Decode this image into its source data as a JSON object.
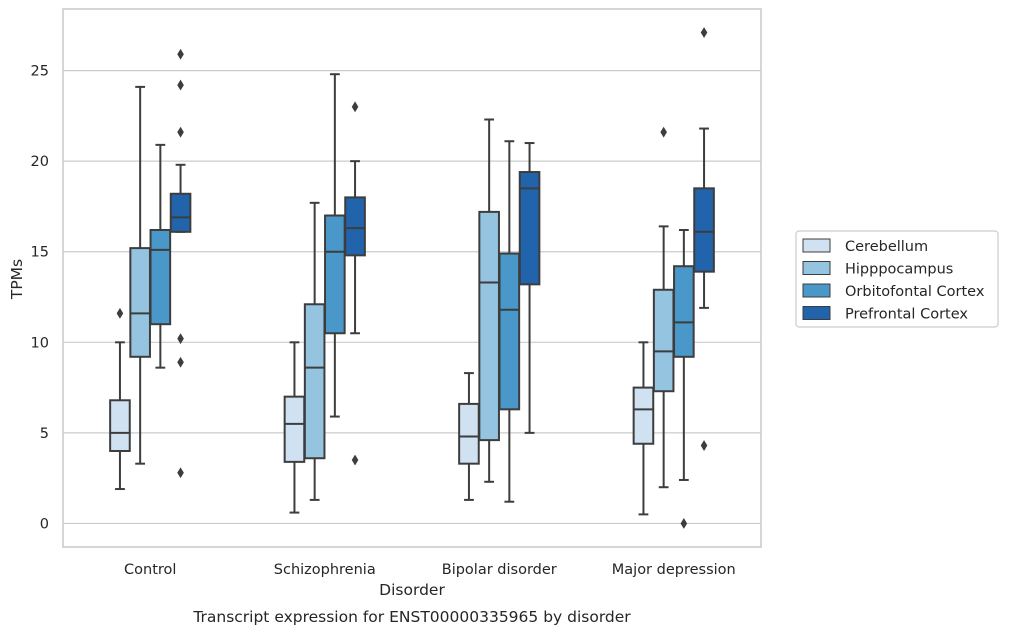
{
  "chart_data": {
    "type": "box",
    "title": "",
    "caption": "Transcript expression for ENST00000335965 by disorder",
    "xlabel": "Disorder",
    "ylabel": "TPMs",
    "ylim": [
      -1.3,
      28.4
    ],
    "yticks": [
      0,
      5,
      10,
      15,
      20,
      25
    ],
    "grid": "horizontal",
    "legend_position": "right",
    "categories": [
      "Control",
      "Schizophrenia",
      "Bipolar disorder",
      "Major depression"
    ],
    "series": [
      {
        "name": "Cerebellum",
        "color": "#d0e1f2",
        "boxes": [
          {
            "whislo": 1.9,
            "q1": 4.0,
            "med": 5.0,
            "q3": 6.8,
            "whishi": 10.0,
            "fliers": [
              11.6
            ]
          },
          {
            "whislo": 0.6,
            "q1": 3.4,
            "med": 5.5,
            "q3": 7.0,
            "whishi": 10.0,
            "fliers": []
          },
          {
            "whislo": 1.3,
            "q1": 3.3,
            "med": 4.8,
            "q3": 6.6,
            "whishi": 8.3,
            "fliers": []
          },
          {
            "whislo": 0.5,
            "q1": 4.4,
            "med": 6.3,
            "q3": 7.5,
            "whishi": 10.0,
            "fliers": []
          }
        ]
      },
      {
        "name": "Hipppocampus",
        "color": "#94c4df",
        "boxes": [
          {
            "whislo": 3.3,
            "q1": 9.2,
            "med": 11.6,
            "q3": 15.2,
            "whishi": 24.1,
            "fliers": []
          },
          {
            "whislo": 1.3,
            "q1": 3.6,
            "med": 8.6,
            "q3": 12.1,
            "whishi": 17.7,
            "fliers": []
          },
          {
            "whislo": 2.3,
            "q1": 4.6,
            "med": 13.3,
            "q3": 17.2,
            "whishi": 22.3,
            "fliers": []
          },
          {
            "whislo": 2.0,
            "q1": 7.3,
            "med": 9.5,
            "q3": 12.9,
            "whishi": 16.4,
            "fliers": [
              21.6
            ]
          }
        ]
      },
      {
        "name": "Orbitofontal Cortex",
        "color": "#4a98c9",
        "boxes": [
          {
            "whislo": 8.6,
            "q1": 11.0,
            "med": 15.1,
            "q3": 16.2,
            "whishi": 20.9,
            "fliers": []
          },
          {
            "whislo": 5.9,
            "q1": 10.5,
            "med": 15.0,
            "q3": 17.0,
            "whishi": 24.8,
            "fliers": []
          },
          {
            "whislo": 1.2,
            "q1": 6.3,
            "med": 11.8,
            "q3": 14.9,
            "whishi": 21.1,
            "fliers": []
          },
          {
            "whislo": 2.4,
            "q1": 9.2,
            "med": 11.1,
            "q3": 14.2,
            "whishi": 16.2,
            "fliers": [
              0.0
            ]
          }
        ]
      },
      {
        "name": "Prefrontal Cortex",
        "color": "#2164ab",
        "boxes": [
          {
            "whislo": 16.1,
            "q1": 16.1,
            "med": 16.9,
            "q3": 18.2,
            "whishi": 19.8,
            "fliers": [
              25.9,
              24.2,
              21.6,
              10.2,
              8.9,
              2.8
            ]
          },
          {
            "whislo": 10.5,
            "q1": 14.8,
            "med": 16.3,
            "q3": 18.0,
            "whishi": 20.0,
            "fliers": [
              23.0,
              3.5
            ]
          },
          {
            "whislo": 5.0,
            "q1": 13.2,
            "med": 18.5,
            "q3": 19.4,
            "whishi": 21.0,
            "fliers": []
          },
          {
            "whislo": 11.9,
            "q1": 13.9,
            "med": 16.1,
            "q3": 18.5,
            "whishi": 21.8,
            "fliers": [
              27.1,
              4.3
            ]
          }
        ]
      }
    ]
  }
}
